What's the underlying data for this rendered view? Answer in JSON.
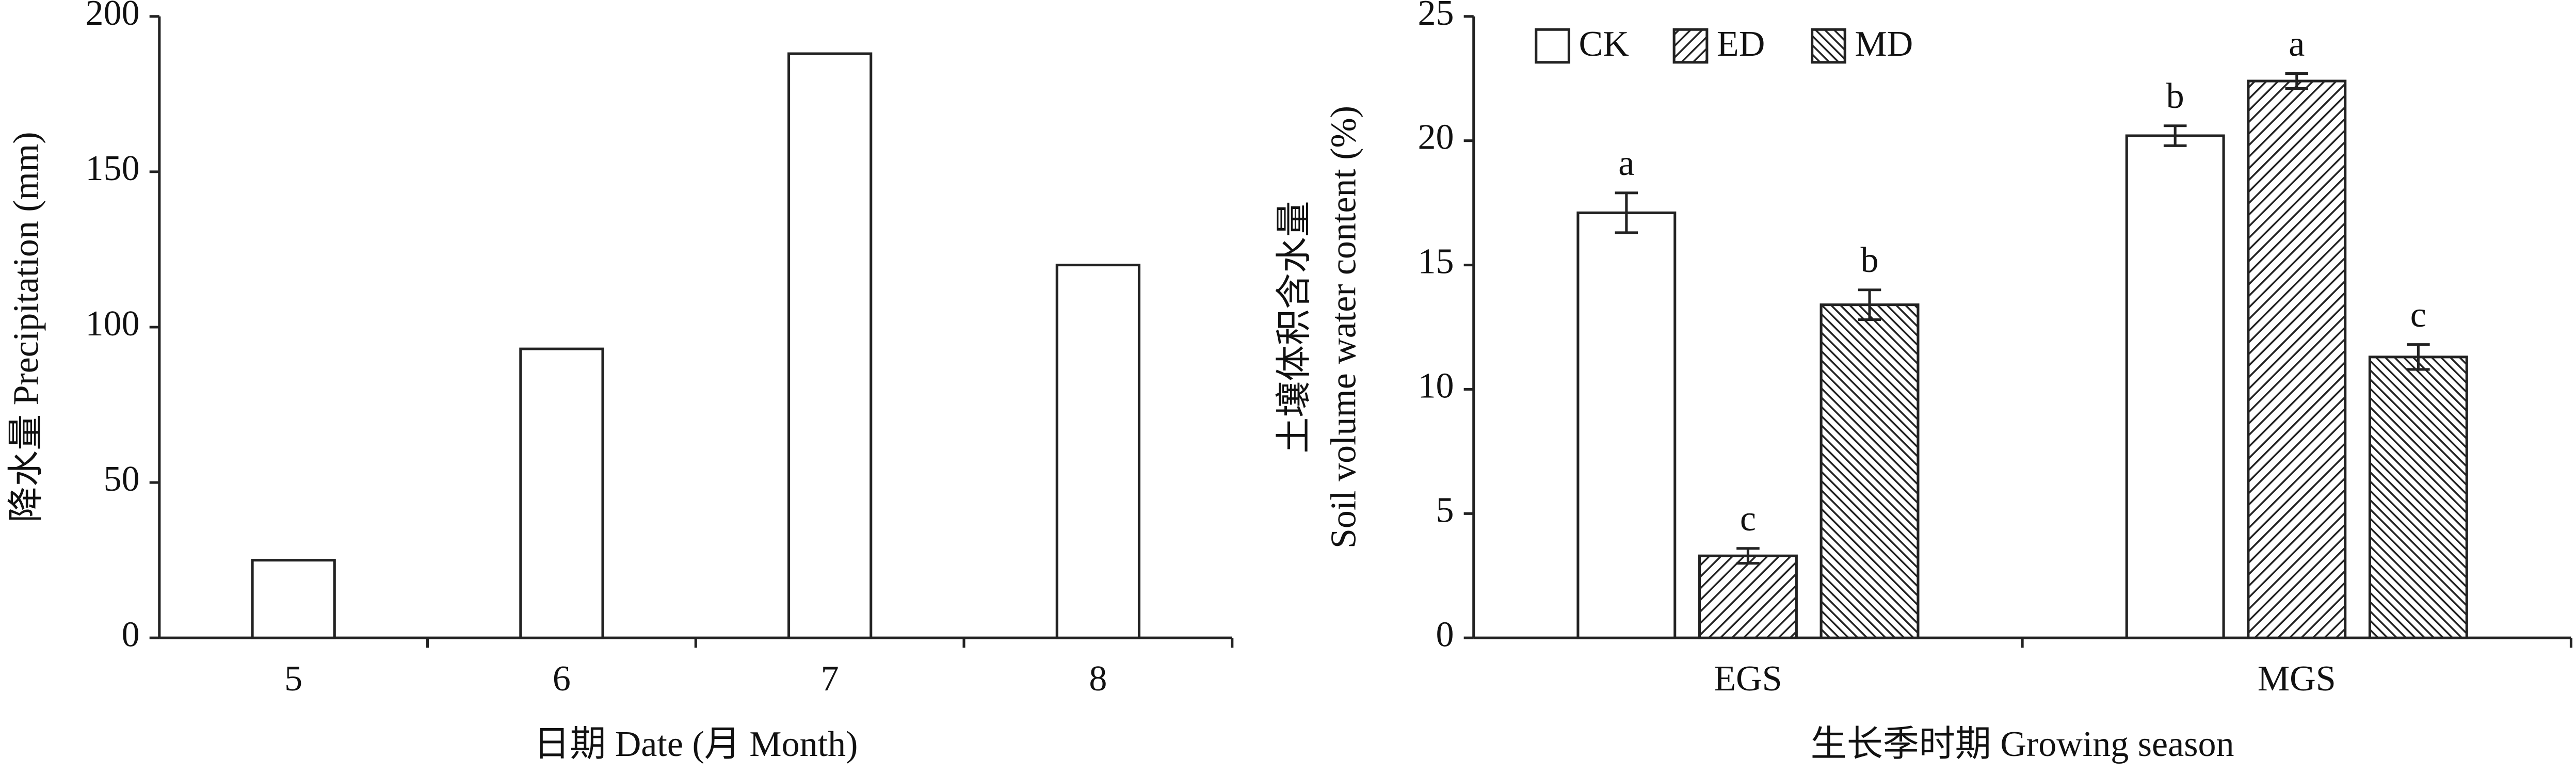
{
  "chart_data": [
    {
      "type": "bar",
      "categories": [
        "5",
        "6",
        "7",
        "8"
      ],
      "values": [
        25,
        93,
        188,
        120
      ],
      "color": "#ffffff",
      "ylim": [
        0,
        200
      ],
      "yticks": [
        0,
        50,
        100,
        150,
        200
      ],
      "xlabel": "日期 Date (月 Month)",
      "ylabel": "降水量 Precipitation (mm)"
    },
    {
      "type": "bar",
      "categories": [
        "EGS",
        "MGS"
      ],
      "series": [
        {
          "name": "CK",
          "color": "#ffffff",
          "hatch": "none",
          "values": [
            17.1,
            20.2
          ],
          "errors": [
            0.8,
            0.4
          ],
          "significance": [
            "a",
            "b"
          ]
        },
        {
          "name": "ED",
          "color": "#ffffff",
          "hatch": "forward",
          "values": [
            3.3,
            22.4
          ],
          "errors": [
            0.3,
            0.3
          ],
          "significance": [
            "c",
            "a"
          ]
        },
        {
          "name": "MD",
          "color": "#ffffff",
          "hatch": "backward",
          "values": [
            13.4,
            11.3
          ],
          "errors": [
            0.6,
            0.5
          ],
          "significance": [
            "b",
            "c"
          ]
        }
      ],
      "ylim": [
        0,
        25
      ],
      "yticks": [
        0,
        5,
        10,
        15,
        20,
        25
      ],
      "legend": "upper left",
      "xlabel": "生长季时期 Growing season",
      "ylabel": [
        "土壤体积含水量",
        "Soil volume water content (%)"
      ]
    }
  ]
}
